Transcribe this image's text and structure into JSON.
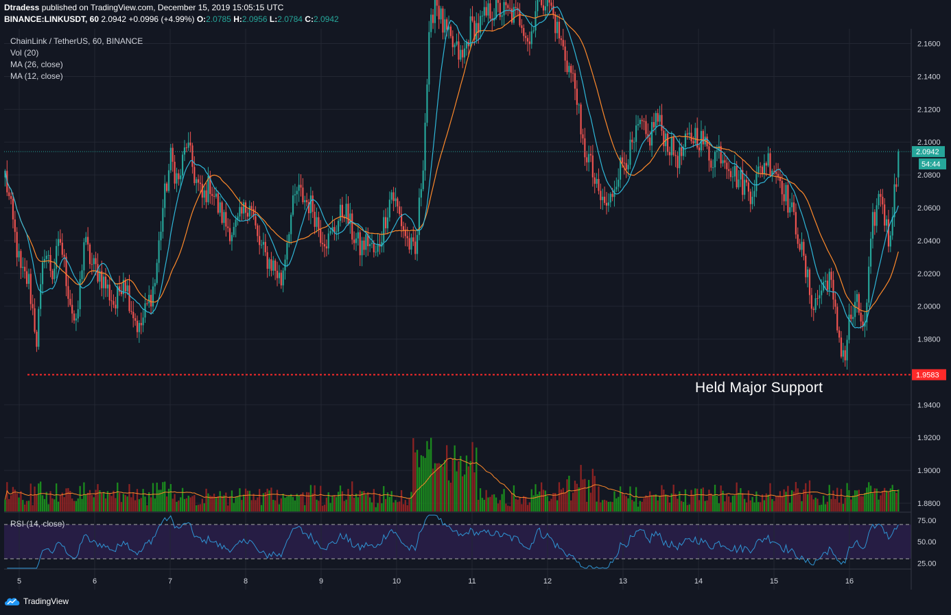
{
  "header": {
    "author": "Dtradess",
    "published_text": " published on TradingView.com, December 15, 2019 15:05:15 UTC",
    "symbol": "BINANCE:LINKUSDT, 60",
    "change": "2.0942 +0.0996 (+4.99%)",
    "o_label": "O:",
    "o_value": "2.0785",
    "h_label": "H:",
    "h_value": "2.0956",
    "l_label": "L:",
    "l_value": "2.0784",
    "c_label": "C:",
    "c_value": "2.0942"
  },
  "legend": {
    "title": "ChainLink / TetherUS, 60, BINANCE",
    "vol": "Vol (20)",
    "ma26": "MA (26, close)",
    "ma12": "MA (12, close)",
    "rsi": "RSI (14, close)"
  },
  "annotation": "Held Major Support",
  "brand": "TradingView",
  "colors": {
    "background": "#131722",
    "up": "#26a69a",
    "down": "#ef5350",
    "vol_up": "#1b8a1e",
    "vol_down": "#8c2323",
    "ma26": "#ff8a2b",
    "ma12": "#2fb8d9",
    "rsi_line": "#2f96d6",
    "rsi_band": "#2a1f4a",
    "support_line": "#ff2a2a"
  },
  "icons": {
    "brand_logo": "tradingview-cloud-icon"
  },
  "chart_data": {
    "type": "candlestick",
    "price_axis": {
      "ticks": [
        "2.1600",
        "2.1400",
        "2.1200",
        "2.1000",
        "2.0800",
        "2.0600",
        "2.0400",
        "2.0200",
        "2.0000",
        "1.9800",
        "1.9400",
        "1.9200",
        "1.9000",
        "1.8800"
      ],
      "values": [
        2.16,
        2.14,
        2.12,
        2.1,
        2.08,
        2.06,
        2.04,
        2.02,
        2.0,
        1.98,
        1.94,
        1.92,
        1.9,
        1.88
      ],
      "range": [
        1.875,
        2.169
      ]
    },
    "current_price": {
      "value": 2.0942,
      "label": "2.0942",
      "countdown": "54:44"
    },
    "support_level": {
      "value": 1.9583,
      "label": "1.9583"
    },
    "rsi_axis": {
      "ticks": [
        "75.00",
        "50.00",
        "25.00"
      ],
      "values": [
        75,
        50,
        25
      ],
      "range": [
        18,
        82
      ],
      "band": [
        70,
        30
      ]
    },
    "time_axis": {
      "labels": [
        "5",
        "6",
        "7",
        "8",
        "9",
        "10",
        "11",
        "12",
        "13",
        "14",
        "15",
        "16"
      ]
    },
    "anchors": [
      [
        0,
        2.08
      ],
      [
        4,
        2.05
      ],
      [
        8,
        2.02
      ],
      [
        12,
        2.015
      ],
      [
        16,
        1.98
      ],
      [
        20,
        2.035
      ],
      [
        24,
        2.02
      ],
      [
        28,
        2.04
      ],
      [
        32,
        2.01
      ],
      [
        36,
        1.985
      ],
      [
        40,
        2.04
      ],
      [
        44,
        2.025
      ],
      [
        48,
        2.02
      ],
      [
        52,
        2.01
      ],
      [
        56,
        2.0
      ],
      [
        60,
        2.02
      ],
      [
        64,
        2.0
      ],
      [
        68,
        1.985
      ],
      [
        72,
        2.0
      ],
      [
        76,
        2.015
      ],
      [
        80,
        2.06
      ],
      [
        84,
        2.09
      ],
      [
        88,
        2.075
      ],
      [
        92,
        2.1
      ],
      [
        96,
        2.08
      ],
      [
        100,
        2.065
      ],
      [
        104,
        2.075
      ],
      [
        108,
        2.06
      ],
      [
        112,
        2.05
      ],
      [
        116,
        2.045
      ],
      [
        120,
        2.055
      ],
      [
        124,
        2.065
      ],
      [
        128,
        2.04
      ],
      [
        132,
        2.03
      ],
      [
        136,
        2.025
      ],
      [
        140,
        2.015
      ],
      [
        144,
        2.05
      ],
      [
        148,
        2.07
      ],
      [
        152,
        2.065
      ],
      [
        156,
        2.06
      ],
      [
        160,
        2.045
      ],
      [
        164,
        2.04
      ],
      [
        168,
        2.05
      ],
      [
        172,
        2.06
      ],
      [
        176,
        2.045
      ],
      [
        180,
        2.035
      ],
      [
        184,
        2.04
      ],
      [
        188,
        2.03
      ],
      [
        192,
        2.05
      ],
      [
        196,
        2.07
      ],
      [
        200,
        2.055
      ],
      [
        204,
        2.04
      ],
      [
        208,
        2.03
      ],
      [
        212,
        2.09
      ],
      [
        215,
        2.16
      ],
      [
        218,
        2.19
      ],
      [
        222,
        2.17
      ],
      [
        226,
        2.16
      ],
      [
        232,
        2.15
      ],
      [
        236,
        2.17
      ],
      [
        240,
        2.17
      ],
      [
        246,
        2.18
      ],
      [
        252,
        2.18
      ],
      [
        262,
        2.175
      ],
      [
        266,
        2.16
      ],
      [
        270,
        2.19
      ],
      [
        276,
        2.185
      ],
      [
        282,
        2.16
      ],
      [
        290,
        2.13
      ],
      [
        292,
        2.1
      ],
      [
        296,
        2.09
      ],
      [
        300,
        2.07
      ],
      [
        302,
        2.065
      ],
      [
        306,
        2.06
      ],
      [
        310,
        2.08
      ],
      [
        314,
        2.09
      ],
      [
        318,
        2.095
      ],
      [
        322,
        2.11
      ],
      [
        326,
        2.1
      ],
      [
        330,
        2.115
      ],
      [
        334,
        2.105
      ],
      [
        338,
        2.095
      ],
      [
        342,
        2.09
      ],
      [
        346,
        2.1
      ],
      [
        350,
        2.105
      ],
      [
        354,
        2.1
      ],
      [
        358,
        2.09
      ],
      [
        362,
        2.095
      ],
      [
        366,
        2.09
      ],
      [
        370,
        2.08
      ],
      [
        374,
        2.075
      ],
      [
        378,
        2.07
      ],
      [
        382,
        2.08
      ],
      [
        386,
        2.09
      ],
      [
        390,
        2.085
      ],
      [
        394,
        2.075
      ],
      [
        398,
        2.06
      ],
      [
        402,
        2.045
      ],
      [
        406,
        2.02
      ],
      [
        410,
        2.0
      ],
      [
        414,
        2.01
      ],
      [
        418,
        2.02
      ],
      [
        420,
        2.0
      ],
      [
        424,
        1.975
      ],
      [
        426,
        1.97
      ],
      [
        428,
        1.99
      ],
      [
        432,
        2.0
      ],
      [
        436,
        1.985
      ],
      [
        440,
        2.05
      ],
      [
        444,
        2.07
      ],
      [
        448,
        2.04
      ],
      [
        450,
        2.06
      ],
      [
        452,
        2.078
      ],
      [
        453,
        2.0942
      ]
    ],
    "ohlc_note": "Hourly candles from Dec 5 to Dec 15, 2019 (LINK/USDT)"
  }
}
